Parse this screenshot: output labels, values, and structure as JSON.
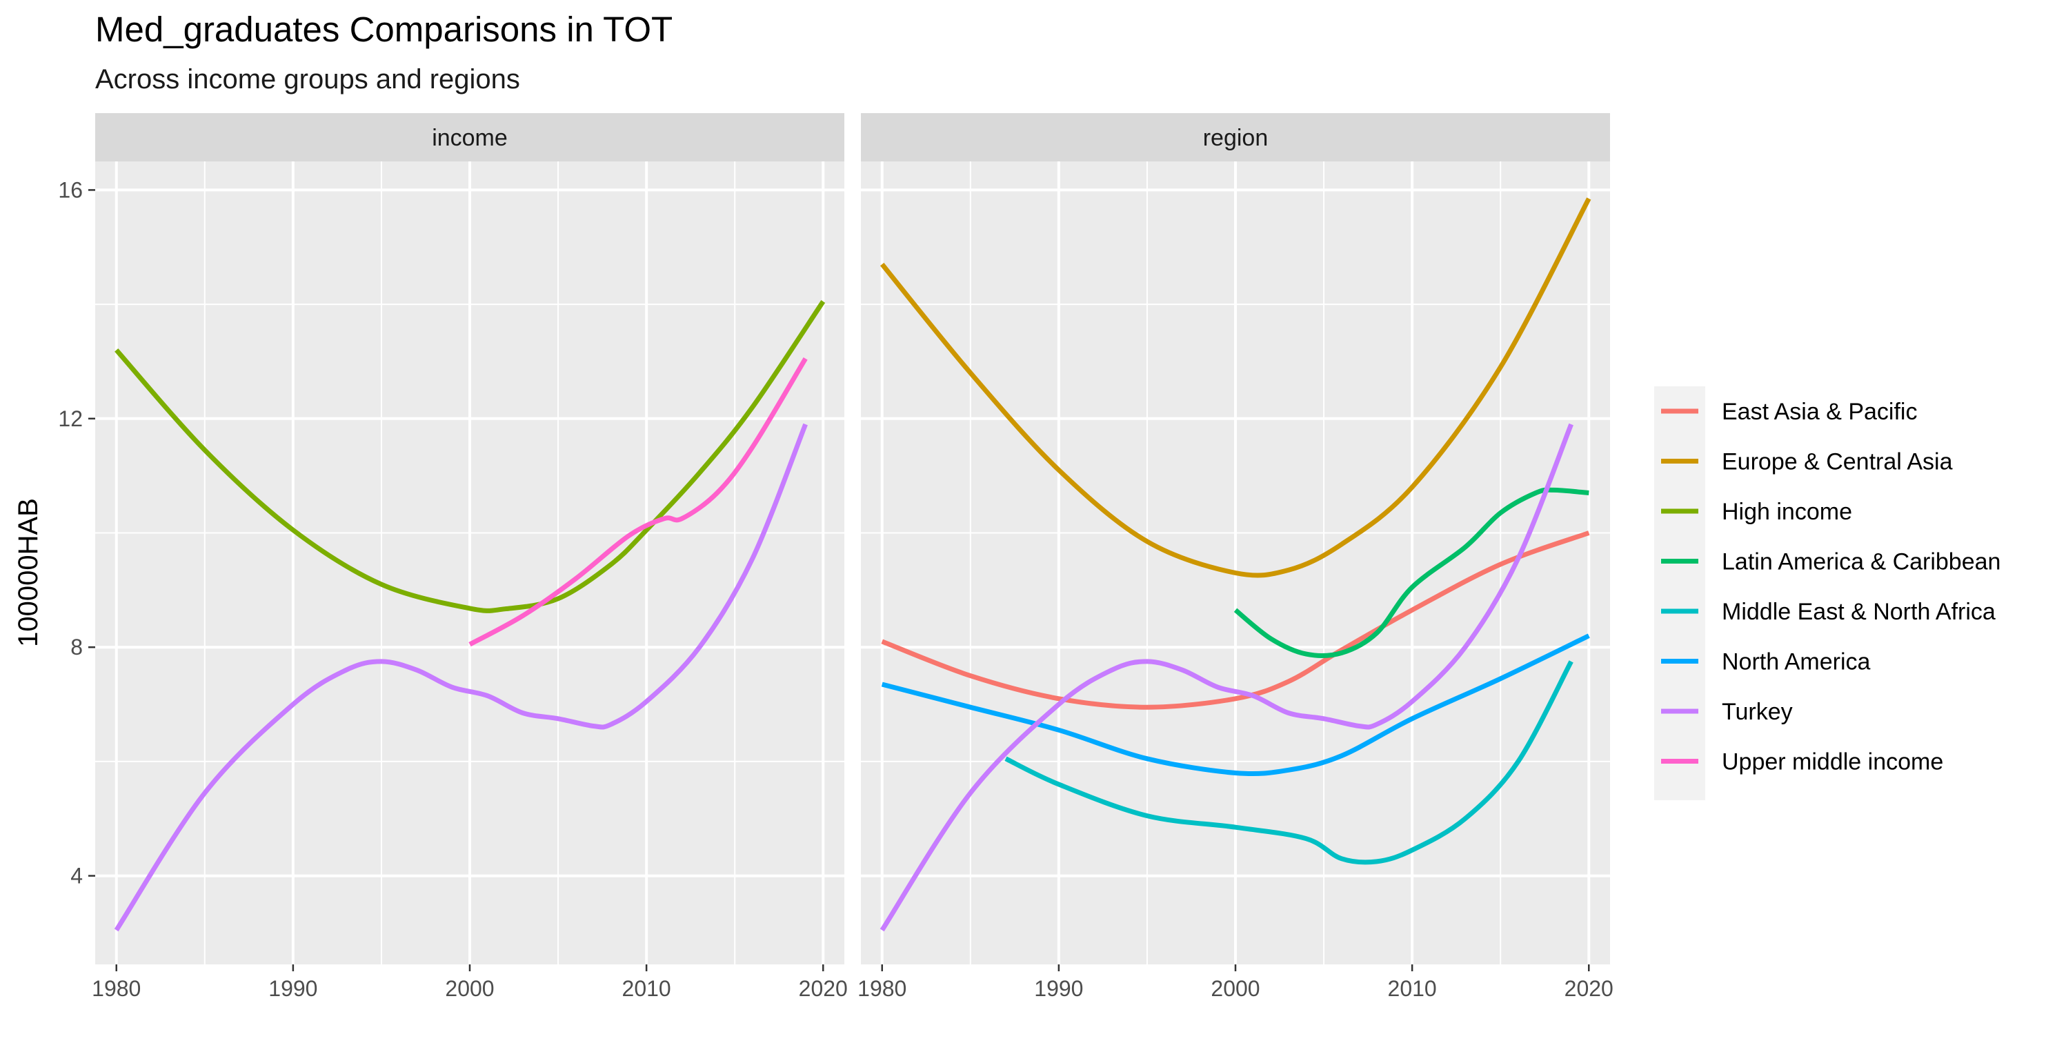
{
  "chart_data": {
    "type": "line",
    "title": "Med_graduates Comparisons in TOT",
    "subtitle": "Across income groups and regions",
    "xlabel": "",
    "ylabel": "100000HAB",
    "xlim": [
      1978.8,
      2021.2
    ],
    "ylim": [
      2.45,
      16.5
    ],
    "x_ticks": [
      1980,
      1990,
      2000,
      2010,
      2020
    ],
    "y_ticks": [
      4,
      8,
      12,
      16
    ],
    "grid": true,
    "legend_position": "right",
    "facets": [
      {
        "strip": "income",
        "series": [
          {
            "name": "High income",
            "color": "#7CAE00",
            "points": [
              [
                1980,
                13.2
              ],
              [
                1985,
                11.45
              ],
              [
                1990,
                10.05
              ],
              [
                1995,
                9.1
              ],
              [
                2000,
                8.68
              ],
              [
                2002,
                8.67
              ],
              [
                2005,
                8.85
              ],
              [
                2008,
                9.45
              ],
              [
                2010,
                10.05
              ],
              [
                2013,
                11.05
              ],
              [
                2016,
                12.2
              ],
              [
                2020,
                14.05
              ]
            ]
          },
          {
            "name": "Turkey",
            "color": "#C77CFF",
            "points": [
              [
                1980,
                3.05
              ],
              [
                1985,
                5.45
              ],
              [
                1990,
                7.0
              ],
              [
                1993,
                7.6
              ],
              [
                1995,
                7.75
              ],
              [
                1997,
                7.6
              ],
              [
                1999,
                7.3
              ],
              [
                2001,
                7.15
              ],
              [
                2003,
                6.85
              ],
              [
                2005,
                6.75
              ],
              [
                2007,
                6.62
              ],
              [
                2008,
                6.65
              ],
              [
                2010,
                7.05
              ],
              [
                2013,
                8.0
              ],
              [
                2016,
                9.55
              ],
              [
                2019,
                11.9
              ]
            ]
          },
          {
            "name": "Upper middle income",
            "color": "#FF61CC",
            "points": [
              [
                2000,
                8.05
              ],
              [
                2003,
                8.55
              ],
              [
                2006,
                9.2
              ],
              [
                2009,
                9.95
              ],
              [
                2011,
                10.25
              ],
              [
                2012,
                10.25
              ],
              [
                2014,
                10.7
              ],
              [
                2016,
                11.5
              ],
              [
                2019,
                13.05
              ]
            ]
          }
        ]
      },
      {
        "strip": "region",
        "series": [
          {
            "name": "East Asia & Pacific",
            "color": "#F8766D",
            "points": [
              [
                1980,
                8.1
              ],
              [
                1985,
                7.5
              ],
              [
                1990,
                7.1
              ],
              [
                1995,
                6.95
              ],
              [
                2000,
                7.1
              ],
              [
                2003,
                7.4
              ],
              [
                2006,
                7.95
              ],
              [
                2010,
                8.65
              ],
              [
                2015,
                9.45
              ],
              [
                2020,
                10.0
              ]
            ]
          },
          {
            "name": "Europe & Central Asia",
            "color": "#CD9600",
            "points": [
              [
                1980,
                14.7
              ],
              [
                1985,
                12.8
              ],
              [
                1990,
                11.1
              ],
              [
                1995,
                9.85
              ],
              [
                2000,
                9.3
              ],
              [
                2003,
                9.35
              ],
              [
                2006,
                9.8
              ],
              [
                2010,
                10.8
              ],
              [
                2015,
                12.9
              ],
              [
                2020,
                15.85
              ]
            ]
          },
          {
            "name": "Latin America & Caribbean",
            "color": "#00BE67",
            "points": [
              [
                2000,
                8.65
              ],
              [
                2002,
                8.15
              ],
              [
                2004,
                7.88
              ],
              [
                2006,
                7.9
              ],
              [
                2008,
                8.25
              ],
              [
                2010,
                9.05
              ],
              [
                2013,
                9.75
              ],
              [
                2015,
                10.35
              ],
              [
                2017,
                10.7
              ],
              [
                2018,
                10.75
              ],
              [
                2020,
                10.7
              ]
            ]
          },
          {
            "name": "Middle East & North Africa",
            "color": "#00BFC4",
            "points": [
              [
                1987,
                6.05
              ],
              [
                1990,
                5.6
              ],
              [
                1995,
                5.05
              ],
              [
                2000,
                4.85
              ],
              [
                2004,
                4.65
              ],
              [
                2006,
                4.3
              ],
              [
                2008,
                4.25
              ],
              [
                2010,
                4.45
              ],
              [
                2013,
                5.0
              ],
              [
                2016,
                6.0
              ],
              [
                2019,
                7.75
              ]
            ]
          },
          {
            "name": "North America",
            "color": "#00A9FF",
            "points": [
              [
                1980,
                7.35
              ],
              [
                1985,
                6.95
              ],
              [
                1990,
                6.55
              ],
              [
                1995,
                6.05
              ],
              [
                2000,
                5.8
              ],
              [
                2003,
                5.85
              ],
              [
                2006,
                6.1
              ],
              [
                2010,
                6.75
              ],
              [
                2015,
                7.45
              ],
              [
                2020,
                8.2
              ]
            ]
          },
          {
            "name": "Turkey",
            "color": "#C77CFF",
            "points": [
              [
                1980,
                3.05
              ],
              [
                1985,
                5.45
              ],
              [
                1990,
                7.0
              ],
              [
                1993,
                7.6
              ],
              [
                1995,
                7.75
              ],
              [
                1997,
                7.6
              ],
              [
                1999,
                7.3
              ],
              [
                2001,
                7.15
              ],
              [
                2003,
                6.85
              ],
              [
                2005,
                6.75
              ],
              [
                2007,
                6.62
              ],
              [
                2008,
                6.65
              ],
              [
                2010,
                7.05
              ],
              [
                2013,
                8.0
              ],
              [
                2016,
                9.55
              ],
              [
                2019,
                11.9
              ]
            ]
          }
        ]
      }
    ],
    "legend": [
      {
        "name": "East Asia & Pacific",
        "color": "#F8766D"
      },
      {
        "name": "Europe & Central Asia",
        "color": "#CD9600"
      },
      {
        "name": "High income",
        "color": "#7CAE00"
      },
      {
        "name": "Latin America & Caribbean",
        "color": "#00BE67"
      },
      {
        "name": "Middle East & North Africa",
        "color": "#00BFC4"
      },
      {
        "name": "North America",
        "color": "#00A9FF"
      },
      {
        "name": "Turkey",
        "color": "#C77CFF"
      },
      {
        "name": "Upper middle income",
        "color": "#FF61CC"
      }
    ]
  }
}
